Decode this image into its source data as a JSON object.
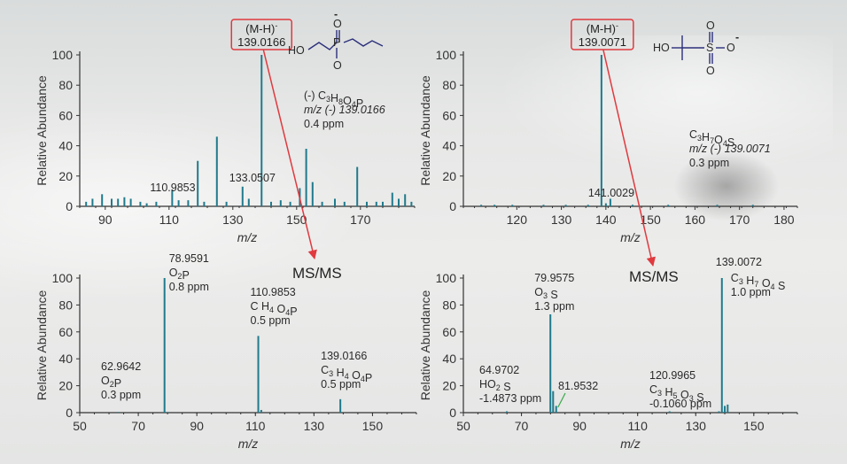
{
  "chart_data": [
    {
      "type": "bar",
      "ylabel": "Relative Abundance",
      "xlabel": "m/z",
      "xlim": [
        82,
        187
      ],
      "ylim": [
        0,
        100
      ],
      "xticks": [
        90,
        110,
        130,
        150,
        170
      ],
      "yticks": [
        0,
        20,
        40,
        60,
        80,
        100
      ],
      "precursor_label": {
        "line1": "(M-H)",
        "sup": "-",
        "line2": "139.0166"
      },
      "peaks": [
        {
          "x": 84,
          "y": 3
        },
        {
          "x": 86,
          "y": 5
        },
        {
          "x": 89,
          "y": 8
        },
        {
          "x": 92,
          "y": 5
        },
        {
          "x": 94,
          "y": 5
        },
        {
          "x": 96,
          "y": 6
        },
        {
          "x": 98,
          "y": 5
        },
        {
          "x": 101,
          "y": 3
        },
        {
          "x": 103,
          "y": 2
        },
        {
          "x": 106,
          "y": 3
        },
        {
          "x": 110.9853,
          "y": 11
        },
        {
          "x": 113,
          "y": 4
        },
        {
          "x": 116,
          "y": 4
        },
        {
          "x": 119,
          "y": 30
        },
        {
          "x": 121,
          "y": 3
        },
        {
          "x": 125,
          "y": 46
        },
        {
          "x": 128,
          "y": 3
        },
        {
          "x": 133.0507,
          "y": 13
        },
        {
          "x": 135,
          "y": 5
        },
        {
          "x": 139.0166,
          "y": 100
        },
        {
          "x": 142,
          "y": 3
        },
        {
          "x": 145,
          "y": 4
        },
        {
          "x": 148,
          "y": 3
        },
        {
          "x": 151,
          "y": 12
        },
        {
          "x": 153,
          "y": 38
        },
        {
          "x": 155,
          "y": 16
        },
        {
          "x": 158,
          "y": 3
        },
        {
          "x": 162,
          "y": 5
        },
        {
          "x": 165,
          "y": 3
        },
        {
          "x": 169,
          "y": 26
        },
        {
          "x": 172,
          "y": 3
        },
        {
          "x": 175,
          "y": 3
        },
        {
          "x": 177,
          "y": 3
        },
        {
          "x": 180,
          "y": 9
        },
        {
          "x": 182,
          "y": 5
        },
        {
          "x": 184,
          "y": 8
        },
        {
          "x": 186,
          "y": 3
        }
      ],
      "annotations": [
        {
          "text": "110.9853",
          "x": 110.9853
        },
        {
          "text": "133.0507",
          "x": 133.0507
        }
      ],
      "formula_lines": [
        "(-)  C3H8O4P",
        "m/z (-) 139.0166",
        "0.4 ppm"
      ],
      "structure_labels": [
        "HO",
        "P",
        "O",
        "O",
        "-"
      ]
    },
    {
      "type": "bar",
      "ylabel": "Relative Abundance",
      "xlabel": "m/z",
      "xlim": [
        108,
        183
      ],
      "ylim": [
        0,
        100
      ],
      "xticks": [
        120,
        130,
        140,
        150,
        160,
        170,
        180
      ],
      "yticks": [
        0,
        20,
        40,
        60,
        80,
        100
      ],
      "precursor_label": {
        "line1": "(M-H)",
        "sup": "-",
        "line2": "139.0071"
      },
      "peaks": [
        {
          "x": 112,
          "y": 1
        },
        {
          "x": 115,
          "y": 1
        },
        {
          "x": 119,
          "y": 1
        },
        {
          "x": 126,
          "y": 1
        },
        {
          "x": 131,
          "y": 1
        },
        {
          "x": 136,
          "y": 1
        },
        {
          "x": 139.0071,
          "y": 100
        },
        {
          "x": 140,
          "y": 2
        },
        {
          "x": 141.0029,
          "y": 5
        },
        {
          "x": 146,
          "y": 1
        },
        {
          "x": 154,
          "y": 1
        },
        {
          "x": 165,
          "y": 1
        },
        {
          "x": 173,
          "y": 1
        }
      ],
      "annotations": [
        {
          "text": "141.0029",
          "x": 141.0029
        }
      ],
      "formula_lines": [
        "C3H7O4S",
        "m/z (-) 139.0071",
        "0.3 ppm"
      ],
      "structure_labels": [
        "HO",
        "S",
        "O",
        "O",
        "O",
        "-"
      ]
    },
    {
      "type": "bar",
      "ylabel": "Relative Abundance",
      "xlabel": "m/z",
      "title": "MS/MS",
      "xlim": [
        50,
        165
      ],
      "ylim": [
        0,
        100
      ],
      "xticks": [
        50,
        70,
        90,
        110,
        130,
        150
      ],
      "yticks": [
        0,
        20,
        40,
        60,
        80,
        100
      ],
      "peaks": [
        {
          "x": 62.9642,
          "y": 0.5
        },
        {
          "x": 78.9591,
          "y": 100
        },
        {
          "x": 80,
          "y": 0.5
        },
        {
          "x": 110.9853,
          "y": 57
        },
        {
          "x": 112,
          "y": 2
        },
        {
          "x": 139.0166,
          "y": 10
        }
      ],
      "annotations": [
        {
          "mz": "78.9591",
          "formula": "O2P",
          "ppm": "0.8 ppm",
          "x": 78.9591
        },
        {
          "mz": "110.9853",
          "formula": "C H4 O4P",
          "ppm": "0.5 ppm",
          "x": 110.9853
        },
        {
          "mz": "139.0166",
          "formula": "C3 H4 O4P",
          "ppm": "0.5 ppm",
          "x": 139.0166
        },
        {
          "mz": "62.9642",
          "formula": "O2P",
          "ppm": "0.3 ppm",
          "x": 62.9642
        }
      ]
    },
    {
      "type": "bar",
      "ylabel": "Relative Abundance",
      "xlabel": "m/z",
      "title": "MS/MS",
      "xlim": [
        50,
        165
      ],
      "ylim": [
        0,
        100
      ],
      "xticks": [
        50,
        70,
        90,
        110,
        130,
        150
      ],
      "yticks": [
        0,
        20,
        40,
        60,
        80,
        100
      ],
      "peaks": [
        {
          "x": 64.9702,
          "y": 1
        },
        {
          "x": 79.9575,
          "y": 73
        },
        {
          "x": 80.9,
          "y": 16
        },
        {
          "x": 81.9532,
          "y": 5
        },
        {
          "x": 120.9965,
          "y": 1
        },
        {
          "x": 138,
          "y": 1
        },
        {
          "x": 139.0072,
          "y": 100
        },
        {
          "x": 140,
          "y": 5
        },
        {
          "x": 141,
          "y": 6
        }
      ],
      "annotations": [
        {
          "mz": "79.9575",
          "formula": "O3 S",
          "ppm": "1.3 ppm",
          "x": 79.9575
        },
        {
          "mz": "64.9702",
          "formula": "HO2 S",
          "ppm": "-1.4873 ppm",
          "x": 64.9702
        },
        {
          "mz": "81.9532",
          "formula": "",
          "ppm": "",
          "x": 81.9532
        },
        {
          "mz": "120.9965",
          "formula": "C3 H5 O3 S",
          "ppm": "-0.1060 ppm",
          "x": 120.9965
        },
        {
          "mz": "139.0072",
          "formula": "C3 H7 O4 S",
          "ppm": "1.0 ppm",
          "x": 139.0072
        }
      ]
    }
  ],
  "colors": {
    "peak": "#1f7a8c",
    "arrow": "#e0393e",
    "structure": "#2b2f7a",
    "axis": "#333333"
  }
}
